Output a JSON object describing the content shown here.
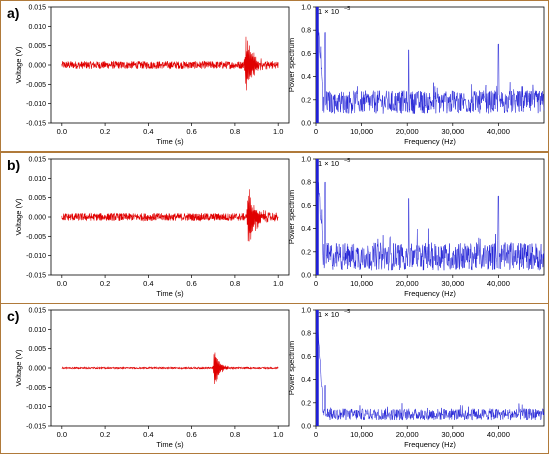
{
  "chart_data": [
    {
      "panel": "a)",
      "time_plot": {
        "type": "line",
        "xlabel": "Time (s)",
        "ylabel": "Voltage (V)",
        "xlim": [
          -0.05,
          1.05
        ],
        "ylim": [
          -0.015,
          0.015
        ],
        "x_ticks": [
          "0.0",
          "0.2",
          "0.4",
          "0.6",
          "0.8",
          "1.0"
        ],
        "y_ticks": [
          "0.015",
          "0.010",
          "0.005",
          "0.000",
          "-0.005",
          "-0.010",
          "-0.015"
        ],
        "series": [
          {
            "color": "#e00000",
            "noise_amplitude": 0.001,
            "events": [
              {
                "t": 0.85,
                "peak": 0.0105,
                "peak_min": -0.0085,
                "decay_s": 0.03
              }
            ]
          }
        ]
      },
      "spectrum_plot": {
        "type": "line",
        "xlabel": "Frequency (Hz)",
        "ylabel": "Power spectrum",
        "y_scale_label": "1 × 10",
        "y_scale_exponent": "−5",
        "xlim": [
          0,
          50000
        ],
        "ylim": [
          0,
          1.0
        ],
        "x_ticks": [
          "0",
          "10,000",
          "20,000",
          "30,000",
          "40,000"
        ],
        "y_ticks": [
          "0.0",
          "0.2",
          "0.4",
          "0.6",
          "0.8",
          "1.0"
        ],
        "series": [
          {
            "color": "#1f1fd6",
            "baseline": 0.18,
            "noise": 0.1,
            "low_freq_peak": 1.0,
            "peaks": [
              {
                "f": 2000,
                "h": 0.78
              },
              {
                "f": 20300,
                "h": 0.63
              },
              {
                "f": 40000,
                "h": 0.68
              }
            ]
          }
        ]
      }
    },
    {
      "panel": "b)",
      "time_plot": {
        "type": "line",
        "xlabel": "Time (s)",
        "ylabel": "Voltage (V)",
        "xlim": [
          -0.05,
          1.05
        ],
        "ylim": [
          -0.015,
          0.015
        ],
        "x_ticks": [
          "0.0",
          "0.2",
          "0.4",
          "0.6",
          "0.8",
          "1.0"
        ],
        "y_ticks": [
          "0.015",
          "0.010",
          "0.005",
          "0.000",
          "-0.005",
          "-0.010",
          "-0.015"
        ],
        "series": [
          {
            "color": "#e00000",
            "noise_amplitude": 0.001,
            "events": [
              {
                "t": 0.86,
                "peak": 0.0088,
                "peak_min": -0.0095,
                "decay_s": 0.035
              }
            ]
          }
        ]
      },
      "spectrum_plot": {
        "type": "line",
        "xlabel": "Frequency (Hz)",
        "ylabel": "Power spectrum",
        "y_scale_label": "1 × 10",
        "y_scale_exponent": "−5",
        "xlim": [
          0,
          50000
        ],
        "ylim": [
          0,
          1.0
        ],
        "x_ticks": [
          "0",
          "10,000",
          "20,000",
          "30,000",
          "40,000"
        ],
        "y_ticks": [
          "0.0",
          "0.2",
          "0.4",
          "0.6",
          "0.8",
          "1.0"
        ],
        "series": [
          {
            "color": "#1f1fd6",
            "baseline": 0.16,
            "noise": 0.12,
            "low_freq_peak": 1.0,
            "peaks": [
              {
                "f": 2000,
                "h": 0.8
              },
              {
                "f": 20300,
                "h": 0.66
              },
              {
                "f": 40000,
                "h": 0.68
              }
            ]
          }
        ]
      }
    },
    {
      "panel": "c)",
      "time_plot": {
        "type": "line",
        "xlabel": "Time (s)",
        "ylabel": "Voltage (V)",
        "xlim": [
          -0.05,
          1.05
        ],
        "ylim": [
          -0.015,
          0.015
        ],
        "x_ticks": [
          "0.0",
          "0.2",
          "0.4",
          "0.6",
          "0.8",
          "1.0"
        ],
        "y_ticks": [
          "0.015",
          "0.010",
          "0.005",
          "0.000",
          "-0.005",
          "-0.010",
          "-0.015"
        ],
        "series": [
          {
            "color": "#e00000",
            "noise_amplitude": 0.0002,
            "events": [
              {
                "t": 0.705,
                "peak": 0.0068,
                "peak_min": -0.0063,
                "decay_s": 0.02
              }
            ]
          }
        ]
      },
      "spectrum_plot": {
        "type": "line",
        "xlabel": "Frequency (Hz)",
        "ylabel": "Power spectrum",
        "y_scale_label": "1 × 10",
        "y_scale_exponent": "−5",
        "xlim": [
          0,
          50000
        ],
        "ylim": [
          0,
          1.0
        ],
        "x_ticks": [
          "0",
          "10,000",
          "20,000",
          "30,000",
          "40,000"
        ],
        "y_ticks": [
          "0.0",
          "0.2",
          "0.4",
          "0.6",
          "0.8",
          "1.0"
        ],
        "series": [
          {
            "color": "#1f1fd6",
            "baseline": 0.1,
            "noise": 0.05,
            "low_freq_peak": 1.0,
            "peaks": [
              {
                "f": 2000,
                "h": 0.35
              }
            ]
          }
        ]
      }
    }
  ]
}
